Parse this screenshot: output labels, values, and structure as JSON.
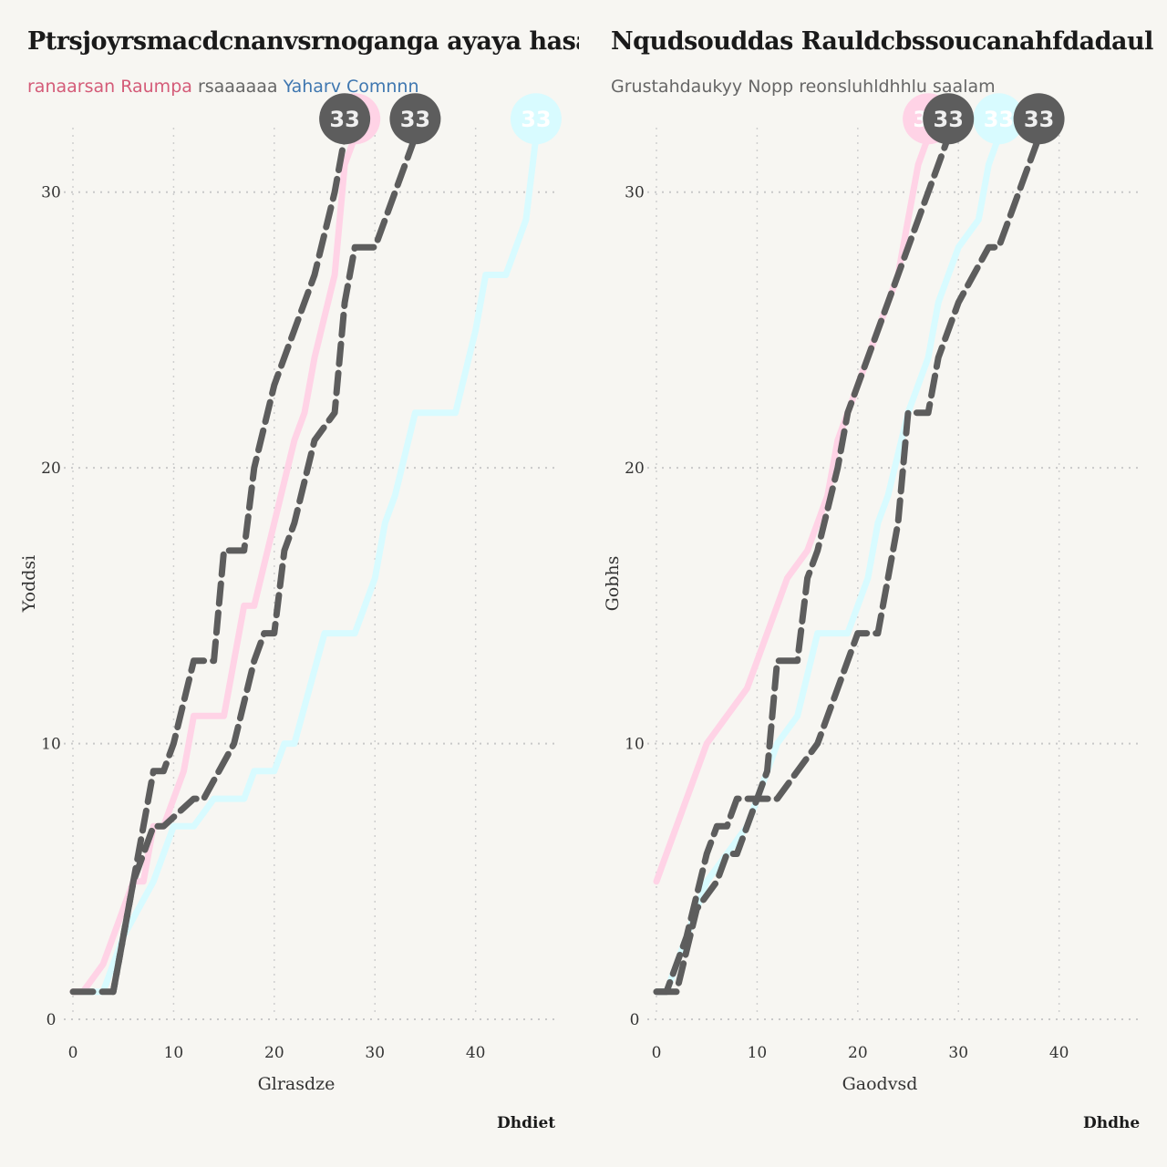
{
  "charts": [
    {
      "title": "Ptrsjoyrsmacdcnanvsrnoganga ayaya hasaada",
      "subtitle_parts": [
        "ranaarsan Raumpa",
        "rsaaaaaa",
        "Yaharv Comnnn"
      ],
      "xlabel": "Glrasdze",
      "ylabel": "Yoddsi",
      "source": "Dhdiet",
      "accent_colors": {
        "pink": "#ffd3e6",
        "cyan": "#d8fbff",
        "gray": "#5d5d5d"
      },
      "chart_data": {
        "type": "line",
        "x_ticks": [
          "0",
          "10",
          "20",
          "30",
          "40"
        ],
        "y_ticks": [
          "0",
          "10",
          "20",
          "30"
        ],
        "xlim": [
          0,
          48
        ],
        "ylim": [
          0,
          33
        ],
        "grid": true,
        "series": [
          {
            "values": [
              [
                0,
                1
              ],
              [
                4,
                1
              ],
              [
                7,
                7
              ],
              [
                8,
                9
              ],
              [
                9,
                9
              ],
              [
                10,
                10
              ],
              [
                12,
                13
              ],
              [
                14,
                13
              ],
              [
                15,
                17
              ],
              [
                17,
                17
              ],
              [
                18,
                20
              ],
              [
                20,
                23
              ],
              [
                22,
                25
              ],
              [
                24,
                27
              ],
              [
                26,
                30
              ],
              [
                27,
                32
              ]
            ],
            "end_label": "33",
            "color": "#5d5d5d"
          },
          {
            "values": [
              [
                4,
                1
              ],
              [
                6,
                5
              ],
              [
                8,
                7
              ],
              [
                9,
                7
              ],
              [
                12,
                8
              ],
              [
                13,
                8
              ],
              [
                16,
                10
              ],
              [
                18,
                13
              ],
              [
                19,
                14
              ],
              [
                20,
                14
              ],
              [
                21,
                17
              ],
              [
                22,
                18
              ],
              [
                24,
                21
              ],
              [
                26,
                22
              ],
              [
                27,
                26
              ],
              [
                28,
                28
              ],
              [
                30,
                28
              ],
              [
                31,
                29
              ],
              [
                34,
                32
              ]
            ],
            "end_label": "33",
            "color": "#5d5d5d"
          },
          {
            "values": [
              [
                0,
                1
              ],
              [
                1,
                1
              ],
              [
                3,
                2
              ],
              [
                5,
                4
              ],
              [
                6,
                5
              ],
              [
                7,
                5
              ],
              [
                8,
                7
              ],
              [
                9,
                7
              ],
              [
                10,
                8
              ],
              [
                11,
                9
              ],
              [
                11.5,
                10
              ],
              [
                12,
                11
              ],
              [
                13,
                11
              ],
              [
                15,
                11
              ],
              [
                17,
                15
              ],
              [
                18,
                15
              ],
              [
                20,
                18
              ],
              [
                22,
                21
              ],
              [
                23,
                22
              ],
              [
                24,
                24
              ],
              [
                26,
                27
              ],
              [
                27,
                31
              ],
              [
                28,
                32
              ]
            ],
            "end_label": "33",
            "color": "#ffd3e6"
          },
          {
            "values": [
              [
                1,
                1
              ],
              [
                3,
                1
              ],
              [
                5,
                3
              ],
              [
                8,
                5
              ],
              [
                10,
                7
              ],
              [
                12,
                7
              ],
              [
                14,
                8
              ],
              [
                17,
                8
              ],
              [
                18,
                9
              ],
              [
                20,
                9
              ],
              [
                21,
                10
              ],
              [
                22,
                10
              ],
              [
                25,
                14
              ],
              [
                28,
                14
              ],
              [
                30,
                16
              ],
              [
                31,
                18
              ],
              [
                32,
                19
              ],
              [
                34,
                22
              ],
              [
                38,
                22
              ],
              [
                40,
                25
              ],
              [
                41,
                27
              ],
              [
                43,
                27
              ],
              [
                45,
                29
              ],
              [
                46,
                32
              ]
            ],
            "end_label": "33",
            "color": "#d8fbff"
          }
        ]
      }
    },
    {
      "title": "Nqudsouddas Rauldcbssoucanahfdadaul",
      "subtitle_parts": [
        "Grustahdaukyy Nopp reonsluhldhhlu saalam"
      ],
      "xlabel": "Gaodvsd",
      "ylabel": "Gobhs",
      "source": "Dhdhe",
      "accent_colors": {
        "pink": "#ffd3e6",
        "cyan": "#d8fbff",
        "gray": "#5d5d5d"
      },
      "chart_data": {
        "type": "line",
        "x_ticks": [
          "0",
          "10",
          "20",
          "30",
          "40"
        ],
        "y_ticks": [
          "0",
          "10",
          "20",
          "30"
        ],
        "xlim": [
          0,
          48
        ],
        "ylim": [
          0,
          33
        ],
        "grid": true,
        "series": [
          {
            "values": [
              [
                0,
                1
              ],
              [
                2,
                1
              ],
              [
                4,
                4
              ],
              [
                6,
                5
              ],
              [
                7,
                6
              ],
              [
                8,
                6
              ],
              [
                9,
                7
              ],
              [
                11,
                9
              ],
              [
                12,
                13
              ],
              [
                14,
                13
              ],
              [
                15,
                16
              ],
              [
                16,
                17
              ],
              [
                18,
                20
              ],
              [
                19,
                22
              ],
              [
                21,
                24
              ],
              [
                23,
                26
              ],
              [
                25,
                28
              ],
              [
                28,
                31
              ],
              [
                29,
                32
              ]
            ],
            "end_label": "33",
            "color": "#5d5d5d"
          },
          {
            "values": [
              [
                0,
                1
              ],
              [
                1,
                1
              ],
              [
                3,
                3
              ],
              [
                5,
                6
              ],
              [
                6,
                7
              ],
              [
                7,
                7
              ],
              [
                8,
                8
              ],
              [
                12,
                8
              ],
              [
                14,
                9
              ],
              [
                16,
                10
              ],
              [
                18,
                12
              ],
              [
                20,
                14
              ],
              [
                22,
                14
              ],
              [
                23,
                16
              ],
              [
                24,
                18
              ],
              [
                25,
                22
              ],
              [
                27,
                22
              ],
              [
                28,
                24
              ],
              [
                30,
                26
              ],
              [
                33,
                28
              ],
              [
                34,
                28
              ],
              [
                35,
                29
              ],
              [
                37,
                31
              ],
              [
                38,
                32
              ]
            ],
            "end_label": "33",
            "color": "#5d5d5d"
          },
          {
            "values": [
              [
                0,
                5
              ],
              [
                1,
                6
              ],
              [
                3,
                8
              ],
              [
                5,
                10
              ],
              [
                7,
                11
              ],
              [
                9,
                12
              ],
              [
                11,
                14
              ],
              [
                13,
                16
              ],
              [
                15,
                17
              ],
              [
                16,
                18
              ],
              [
                17,
                19
              ],
              [
                18,
                21
              ],
              [
                20,
                23
              ],
              [
                22,
                25
              ],
              [
                24,
                27
              ],
              [
                25,
                29
              ],
              [
                26,
                31
              ],
              [
                27,
                32
              ]
            ],
            "end_label": "33",
            "color": "#ffd3e6"
          },
          {
            "values": [
              [
                0,
                1
              ],
              [
                1,
                1
              ],
              [
                3,
                3
              ],
              [
                5,
                5
              ],
              [
                7,
                6
              ],
              [
                9,
                7
              ],
              [
                11,
                9
              ],
              [
                12,
                10
              ],
              [
                14,
                11
              ],
              [
                16,
                14
              ],
              [
                19,
                14
              ],
              [
                21,
                16
              ],
              [
                22,
                18
              ],
              [
                23,
                19
              ],
              [
                25,
                22
              ],
              [
                27,
                24
              ],
              [
                28,
                26
              ],
              [
                30,
                28
              ],
              [
                32,
                29
              ],
              [
                33,
                31
              ],
              [
                34,
                32
              ]
            ],
            "end_label": "33",
            "color": "#d8fbff"
          }
        ]
      }
    }
  ]
}
